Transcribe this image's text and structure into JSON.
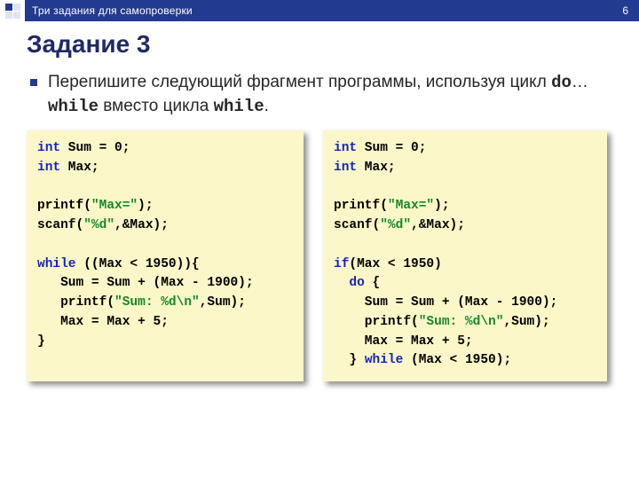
{
  "topbar": {
    "title": "Три задания для самопроверки",
    "page_number": "6",
    "colors": {
      "bg": "#223a8f",
      "fg": "#ffffff"
    }
  },
  "heading": "Задание 3",
  "paragraph": {
    "pre": "Перепишите следующий фрагмент программы, используя цикл ",
    "mono1": "do",
    "mid": "…",
    "mono2": "while",
    "mid2": " вместо цикла ",
    "mono3": "while",
    "post": "."
  },
  "code_left": {
    "lines": [
      [
        {
          "t": "int",
          "c": "kw"
        },
        {
          "t": " Sum = 0;",
          "c": null
        }
      ],
      [
        {
          "t": "int",
          "c": "kw"
        },
        {
          "t": " Max;",
          "c": null
        }
      ],
      [
        {
          "t": "",
          "c": null
        }
      ],
      [
        {
          "t": "printf(",
          "c": null
        },
        {
          "t": "\"Max=\"",
          "c": "str"
        },
        {
          "t": ");",
          "c": null
        }
      ],
      [
        {
          "t": "scanf(",
          "c": null
        },
        {
          "t": "\"%d\"",
          "c": "str"
        },
        {
          "t": ",&Max);",
          "c": null
        }
      ],
      [
        {
          "t": "",
          "c": null
        }
      ],
      [
        {
          "t": "while",
          "c": "kw"
        },
        {
          "t": " ((Max < 1950)){",
          "c": null
        }
      ],
      [
        {
          "t": "   Sum = Sum + (Max - 1900);",
          "c": null
        }
      ],
      [
        {
          "t": "   printf(",
          "c": null
        },
        {
          "t": "\"Sum: %d\\n\"",
          "c": "str"
        },
        {
          "t": ",Sum);",
          "c": null
        }
      ],
      [
        {
          "t": "   Max = Max + 5;",
          "c": null
        }
      ],
      [
        {
          "t": "}",
          "c": null
        }
      ]
    ]
  },
  "code_right": {
    "lines": [
      [
        {
          "t": "int",
          "c": "kw"
        },
        {
          "t": " Sum = 0;",
          "c": null
        }
      ],
      [
        {
          "t": "int",
          "c": "kw"
        },
        {
          "t": " Max;",
          "c": null
        }
      ],
      [
        {
          "t": "",
          "c": null
        }
      ],
      [
        {
          "t": "printf(",
          "c": null
        },
        {
          "t": "\"Max=\"",
          "c": "str"
        },
        {
          "t": ");",
          "c": null
        }
      ],
      [
        {
          "t": "scanf(",
          "c": null
        },
        {
          "t": "\"%d\"",
          "c": "str"
        },
        {
          "t": ",&Max);",
          "c": null
        }
      ],
      [
        {
          "t": "",
          "c": null
        }
      ],
      [
        {
          "t": "if",
          "c": "kw"
        },
        {
          "t": "(Max < 1950)",
          "c": null
        }
      ],
      [
        {
          "t": "  ",
          "c": null
        },
        {
          "t": "do",
          "c": "kw"
        },
        {
          "t": " {",
          "c": null
        }
      ],
      [
        {
          "t": "    Sum = Sum + (Max - 1900);",
          "c": null
        }
      ],
      [
        {
          "t": "    printf(",
          "c": null
        },
        {
          "t": "\"Sum: %d\\n\"",
          "c": "str"
        },
        {
          "t": ",Sum);",
          "c": null
        }
      ],
      [
        {
          "t": "    Max = Max + 5;",
          "c": null
        }
      ],
      [
        {
          "t": "  } ",
          "c": null
        },
        {
          "t": "while",
          "c": "kw"
        },
        {
          "t": " (Max < 1950);",
          "c": null
        }
      ]
    ]
  },
  "style": {
    "code_bg": "#fcf7c8",
    "kw_color": "#1626b8",
    "str_color": "#118a2a",
    "heading_color": "#1f2a66",
    "bullet_color": "#223a8f"
  }
}
